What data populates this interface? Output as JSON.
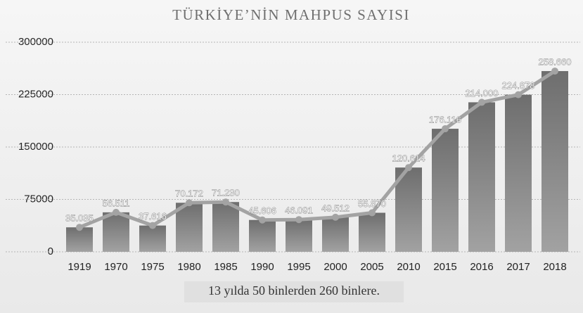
{
  "chart_data": {
    "type": "bar",
    "line": true,
    "title": "TÜRKİYE’NİN MAHPUS SAYISI",
    "annotation": "13 yılda 50 binlerden 260 binlere.",
    "categories": [
      "1919",
      "1970",
      "1975",
      "1980",
      "1985",
      "1990",
      "1995",
      "2000",
      "2005",
      "2010",
      "2015",
      "2016",
      "2017",
      "2018"
    ],
    "values": [
      35035,
      56511,
      37616,
      70172,
      71230,
      45606,
      46091,
      49512,
      55870,
      120614,
      176116,
      214000,
      224878,
      258660
    ],
    "value_labels": [
      "35.035",
      "56.511",
      "37.616",
      "70.172",
      "71.230",
      "45.606",
      "46.091",
      "49.512",
      "55.870",
      "120.614",
      "176.116",
      "214.000",
      "224.878",
      "258.660"
    ],
    "color": "#8c8c8c",
    "line_color": "#a3a3a3",
    "ylim": [
      0,
      300000
    ],
    "yticks": [
      0,
      75000,
      150000,
      225000,
      300000
    ],
    "grid": true
  }
}
